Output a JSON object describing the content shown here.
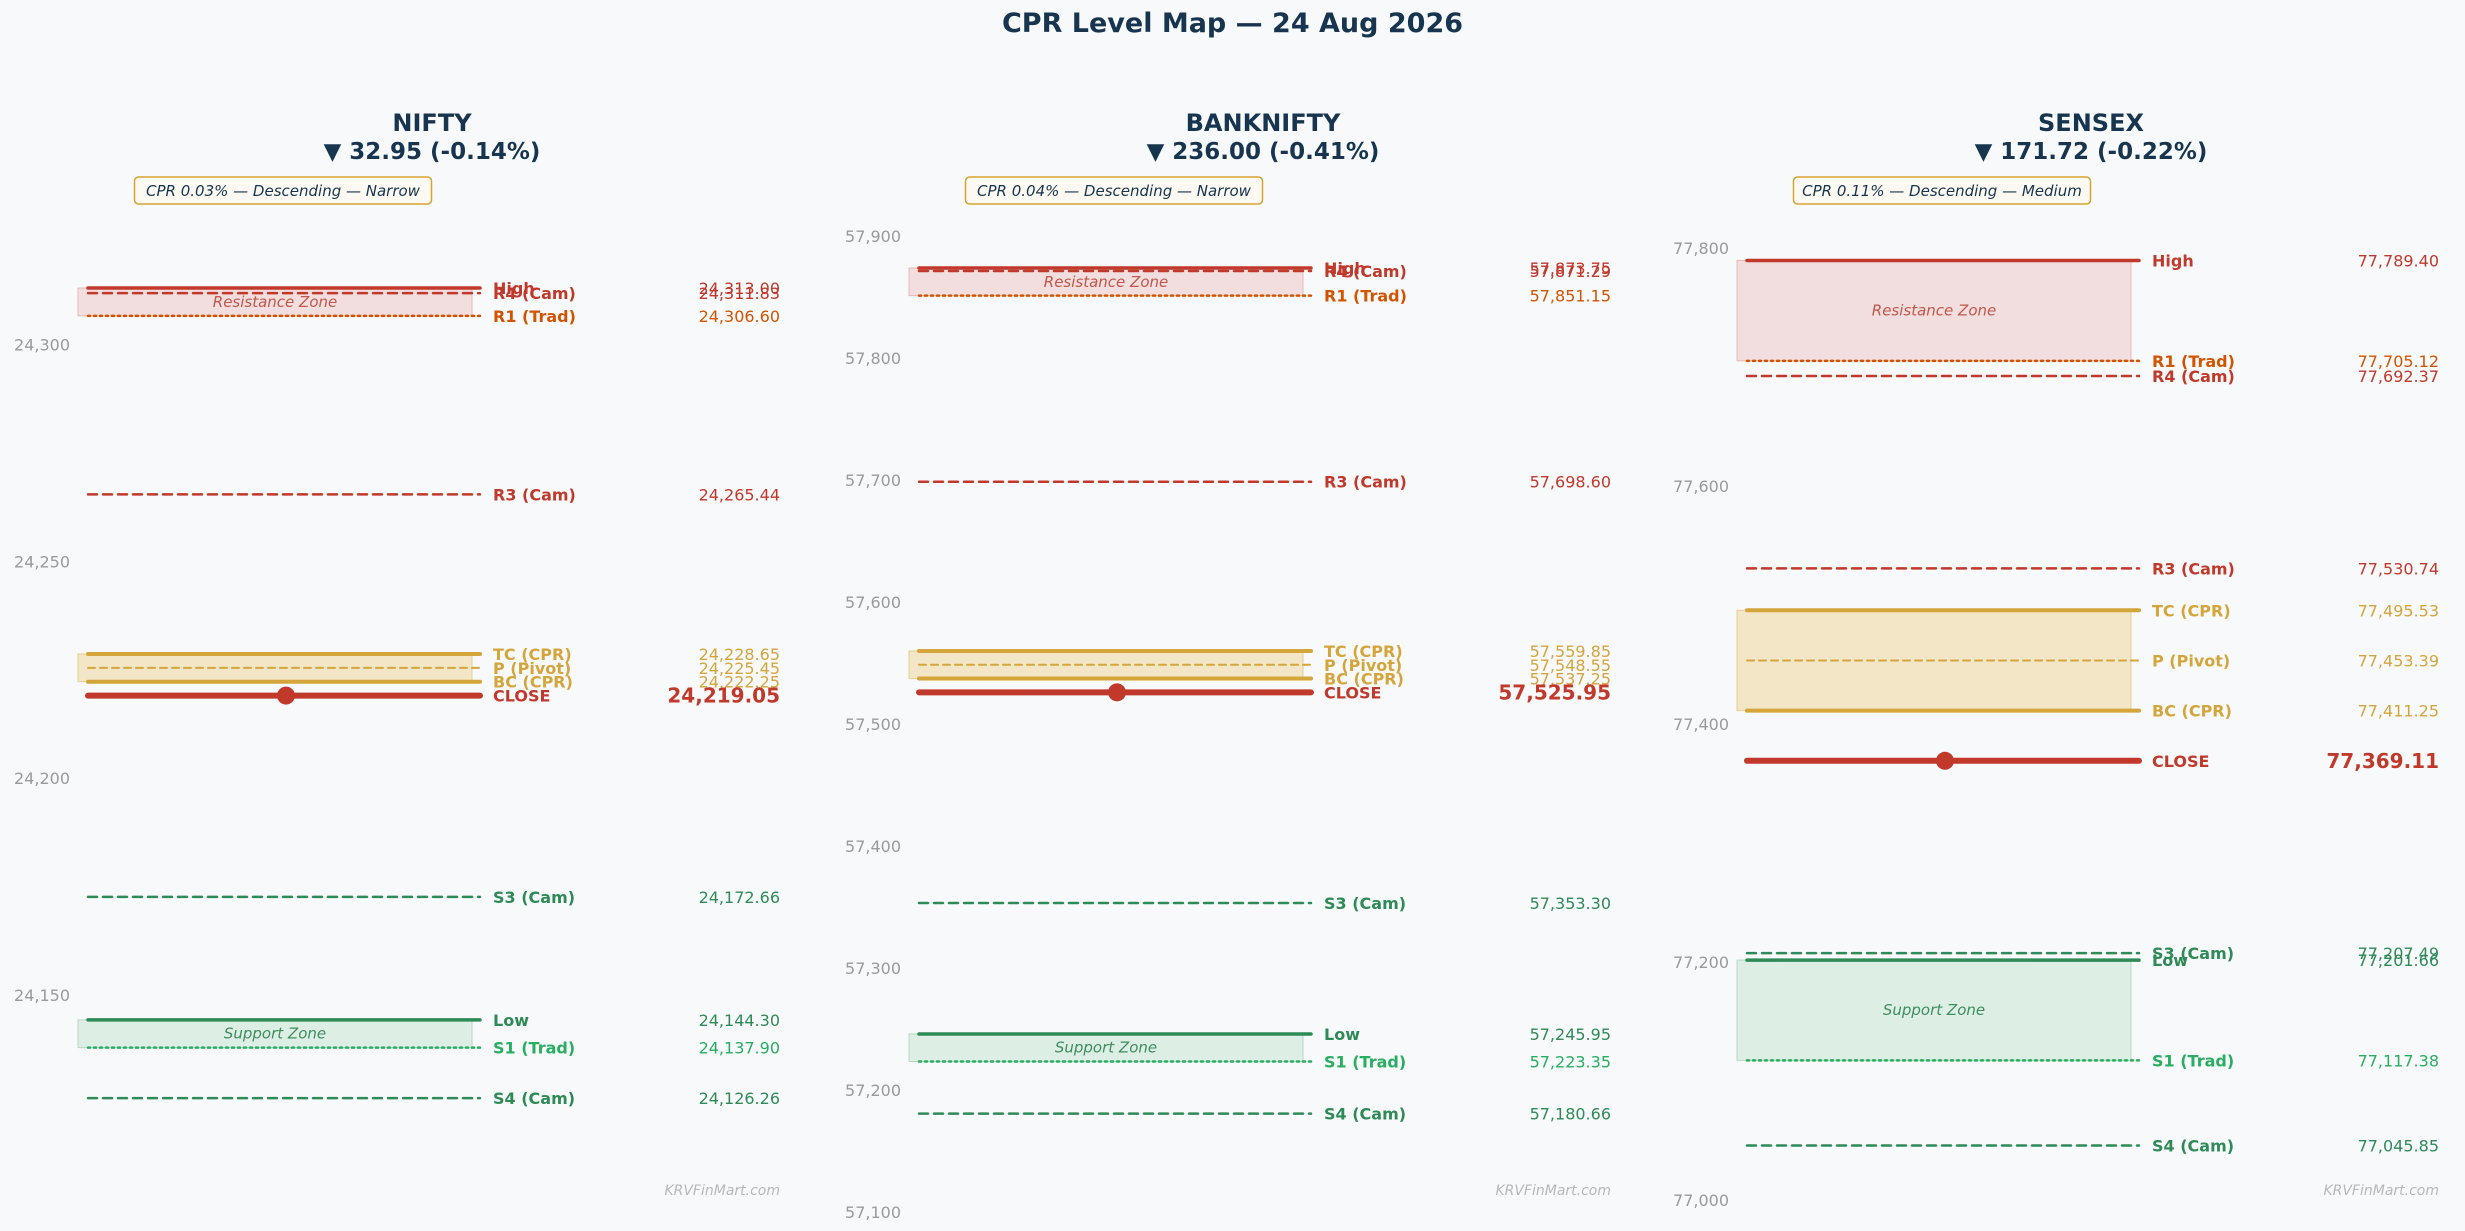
{
  "title": "CPR Level Map — 24 Aug 2026",
  "watermark": "KRVFinMart.com",
  "colors": {
    "resistance": "#c0392b",
    "trad_r": "#d35400",
    "cpr": "#d4a53a",
    "support": "#2e8b57",
    "trad_s": "#27ae60",
    "title": "#17354f",
    "resistance_zone": "#f2dede",
    "cpr_zone": "#f3e6c6",
    "support_zone": "#ddeee5"
  },
  "chart_data": [
    {
      "type": "level-map",
      "title": "NIFTY",
      "change": "▼ 32.95 (-0.14%)",
      "badge": "CPR 0.03% — Descending — Narrow",
      "ylim": [
        24100,
        24325
      ],
      "yticks": [
        "24,150",
        "24,200",
        "24,250",
        "24,300"
      ],
      "tick_values": [
        24150,
        24200,
        24250,
        24300
      ],
      "resistance_zone": {
        "label": "Resistance Zone",
        "from": 24306.6,
        "to": 24313.0
      },
      "cpr_zone": {
        "from": 24222.25,
        "to": 24228.65
      },
      "support_zone": {
        "label": "Support Zone",
        "from": 24137.9,
        "to": 24144.3
      },
      "levels": [
        {
          "label": "High",
          "value": 24313.0,
          "display": "24,313.00",
          "kind": "high"
        },
        {
          "label": "R4 (Cam)",
          "value": 24311.83,
          "display": "24,311.83",
          "kind": "cam_r"
        },
        {
          "label": "R1 (Trad)",
          "value": 24306.6,
          "display": "24,306.60",
          "kind": "trad_r"
        },
        {
          "label": "R3 (Cam)",
          "value": 24265.44,
          "display": "24,265.44",
          "kind": "cam_r"
        },
        {
          "label": "TC (CPR)",
          "value": 24228.65,
          "display": "24,228.65",
          "kind": "cpr"
        },
        {
          "label": "P (Pivot)",
          "value": 24225.45,
          "display": "24,225.45",
          "kind": "pivot"
        },
        {
          "label": "BC (CPR)",
          "value": 24222.25,
          "display": "24,222.25",
          "kind": "cpr"
        },
        {
          "label": "CLOSE",
          "value": 24219.05,
          "display": "24,219.05",
          "kind": "close"
        },
        {
          "label": "S3 (Cam)",
          "value": 24172.66,
          "display": "24,172.66",
          "kind": "cam_s"
        },
        {
          "label": "Low",
          "value": 24144.3,
          "display": "24,144.30",
          "kind": "low"
        },
        {
          "label": "S1 (Trad)",
          "value": 24137.9,
          "display": "24,137.90",
          "kind": "trad_s"
        },
        {
          "label": "S4 (Cam)",
          "value": 24126.26,
          "display": "24,126.26",
          "kind": "cam_s"
        }
      ]
    },
    {
      "type": "level-map",
      "title": "BANKNIFTY",
      "change": "▼ 236.00 (-0.41%)",
      "badge": "CPR 0.04% — Descending — Narrow",
      "ylim": [
        57100,
        57900
      ],
      "yticks": [
        "57,100",
        "57,200",
        "57,300",
        "57,400",
        "57,500",
        "57,600",
        "57,700",
        "57,800",
        "57,900"
      ],
      "tick_values": [
        57100,
        57200,
        57300,
        57400,
        57500,
        57600,
        57700,
        57800,
        57900
      ],
      "resistance_zone": {
        "label": "Resistance Zone",
        "from": 57851.15,
        "to": 57873.75
      },
      "cpr_zone": {
        "from": 57537.25,
        "to": 57559.85
      },
      "support_zone": {
        "label": "Support Zone",
        "from": 57223.35,
        "to": 57245.95
      },
      "levels": [
        {
          "label": "High",
          "value": 57873.75,
          "display": "57,873.75",
          "kind": "high"
        },
        {
          "label": "R4 (Cam)",
          "value": 57871.29,
          "display": "57,871.29",
          "kind": "cam_r"
        },
        {
          "label": "R1 (Trad)",
          "value": 57851.15,
          "display": "57,851.15",
          "kind": "trad_r"
        },
        {
          "label": "R3 (Cam)",
          "value": 57698.6,
          "display": "57,698.60",
          "kind": "cam_r"
        },
        {
          "label": "TC (CPR)",
          "value": 57559.85,
          "display": "57,559.85",
          "kind": "cpr"
        },
        {
          "label": "P (Pivot)",
          "value": 57548.55,
          "display": "57,548.55",
          "kind": "pivot"
        },
        {
          "label": "BC (CPR)",
          "value": 57537.25,
          "display": "57,537.25",
          "kind": "cpr"
        },
        {
          "label": "CLOSE",
          "value": 57525.95,
          "display": "57,525.95",
          "kind": "close"
        },
        {
          "label": "S3 (Cam)",
          "value": 57353.3,
          "display": "57,353.30",
          "kind": "cam_s"
        },
        {
          "label": "Low",
          "value": 57245.95,
          "display": "57,245.95",
          "kind": "low"
        },
        {
          "label": "S1 (Trad)",
          "value": 57223.35,
          "display": "57,223.35",
          "kind": "trad_s"
        },
        {
          "label": "S4 (Cam)",
          "value": 57180.66,
          "display": "57,180.66",
          "kind": "cam_s"
        }
      ]
    },
    {
      "type": "level-map",
      "title": "SENSEX",
      "change": "▼ 171.72 (-0.22%)",
      "badge": "CPR 0.11% — Descending — Medium",
      "ylim": [
        76990,
        77810
      ],
      "yticks": [
        "77,000",
        "77,200",
        "77,400",
        "77,600",
        "77,800"
      ],
      "tick_values": [
        77000,
        77200,
        77400,
        77600,
        77800
      ],
      "resistance_zone": {
        "label": "Resistance Zone",
        "from": 77705.12,
        "to": 77789.4
      },
      "cpr_zone": {
        "from": 77411.25,
        "to": 77495.53
      },
      "support_zone": {
        "label": "Support Zone",
        "from": 77117.38,
        "to": 77201.66
      },
      "levels": [
        {
          "label": "High",
          "value": 77789.4,
          "display": "77,789.40",
          "kind": "high"
        },
        {
          "label": "R1 (Trad)",
          "value": 77705.12,
          "display": "77,705.12",
          "kind": "trad_r"
        },
        {
          "label": "R4 (Cam)",
          "value": 77692.37,
          "display": "77,692.37",
          "kind": "cam_r"
        },
        {
          "label": "R3 (Cam)",
          "value": 77530.74,
          "display": "77,530.74",
          "kind": "cam_r"
        },
        {
          "label": "TC (CPR)",
          "value": 77495.53,
          "display": "77,495.53",
          "kind": "cpr"
        },
        {
          "label": "P (Pivot)",
          "value": 77453.39,
          "display": "77,453.39",
          "kind": "pivot"
        },
        {
          "label": "BC (CPR)",
          "value": 77411.25,
          "display": "77,411.25",
          "kind": "cpr"
        },
        {
          "label": "CLOSE",
          "value": 77369.11,
          "display": "77,369.11",
          "kind": "close"
        },
        {
          "label": "S3 (Cam)",
          "value": 77207.49,
          "display": "77,207.49",
          "kind": "cam_s"
        },
        {
          "label": "Low",
          "value": 77201.66,
          "display": "77,201.66",
          "kind": "low"
        },
        {
          "label": "S1 (Trad)",
          "value": 77117.38,
          "display": "77,117.38",
          "kind": "trad_s"
        },
        {
          "label": "S4 (Cam)",
          "value": 77045.85,
          "display": "77,045.85",
          "kind": "cam_s"
        }
      ]
    }
  ]
}
